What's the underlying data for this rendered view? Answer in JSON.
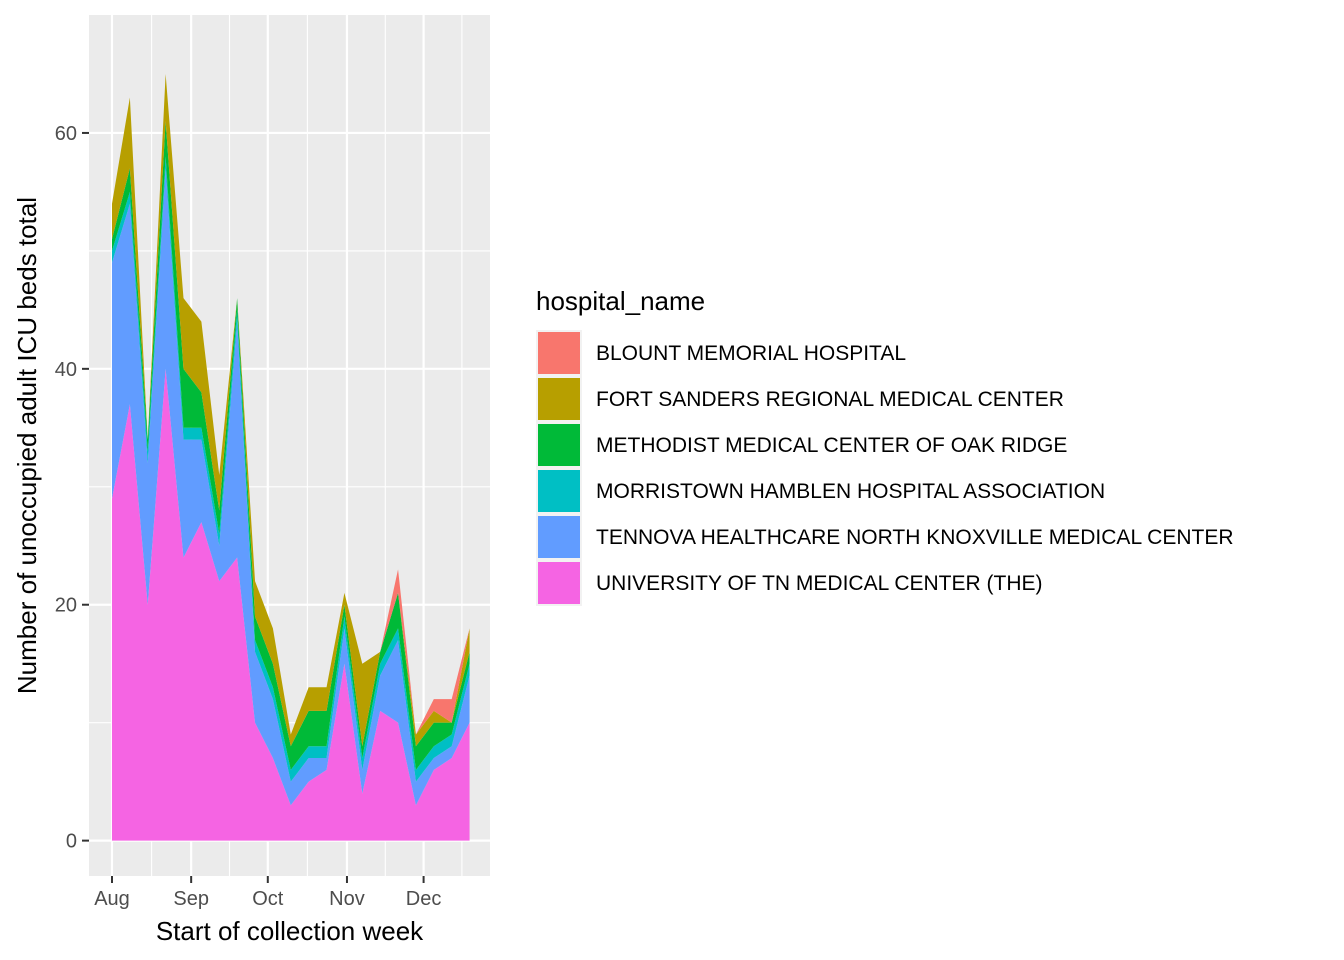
{
  "chart_data": {
    "type": "area",
    "stacked": true,
    "xlabel": "Start of collection week",
    "ylabel": "Number of unoccupied adult ICU beds total",
    "x": [
      "2020-08-01",
      "2020-08-08",
      "2020-08-15",
      "2020-08-22",
      "2020-08-29",
      "2020-09-05",
      "2020-09-12",
      "2020-09-19",
      "2020-09-26",
      "2020-10-03",
      "2020-10-10",
      "2020-10-17",
      "2020-10-24",
      "2020-10-31",
      "2020-11-07",
      "2020-11-14",
      "2020-11-21",
      "2020-11-28",
      "2020-12-05",
      "2020-12-12",
      "2020-12-19"
    ],
    "xlim": [
      "2020-07-23",
      "2020-12-27"
    ],
    "ylim": [
      -3,
      70
    ],
    "x_ticks": [
      {
        "date": "2020-08-01",
        "label": "Aug"
      },
      {
        "date": "2020-09-01",
        "label": "Sep"
      },
      {
        "date": "2020-10-01",
        "label": "Oct"
      },
      {
        "date": "2020-11-01",
        "label": "Nov"
      },
      {
        "date": "2020-12-01",
        "label": "Dec"
      }
    ],
    "y_ticks": [
      0,
      20,
      40,
      60
    ],
    "grid": true,
    "legend": {
      "title": "hospital_name",
      "placement": "right"
    },
    "series": [
      {
        "name": "BLOUNT MEMORIAL HOSPITAL",
        "color": "#F8766D",
        "values": [
          0,
          0,
          0,
          0,
          0,
          0,
          0,
          0,
          0,
          0,
          0,
          0,
          0,
          0,
          0,
          0,
          2,
          0,
          1,
          2,
          0
        ]
      },
      {
        "name": "FORT SANDERS REGIONAL MEDICAL CENTER",
        "color": "#B79F00",
        "values": [
          3,
          6,
          0,
          4,
          6,
          6,
          3,
          0,
          3,
          3,
          1,
          2,
          2,
          1,
          7,
          0,
          0,
          1,
          1,
          0,
          2
        ]
      },
      {
        "name": "METHODIST MEDICAL CENTER OF OAK RIDGE",
        "color": "#00BA38",
        "values": [
          1,
          2,
          1,
          3,
          5,
          3,
          2,
          1,
          2,
          2,
          2,
          3,
          3,
          1,
          1,
          1,
          3,
          2,
          2,
          1,
          1
        ]
      },
      {
        "name": "MORRISTOWN HAMBLEN HOSPITAL ASSOCIATION",
        "color": "#00BFC4",
        "values": [
          1,
          1,
          1,
          1,
          1,
          1,
          1,
          1,
          1,
          1,
          1,
          1,
          1,
          1,
          1,
          1,
          1,
          1,
          1,
          1,
          1
        ]
      },
      {
        "name": "TENNOVA HEALTHCARE NORTH KNOXVILLE MEDICAL CENTER",
        "color": "#619CFF",
        "values": [
          20,
          17,
          12,
          17,
          10,
          7,
          3,
          20,
          6,
          5,
          2,
          2,
          1,
          3,
          2,
          3,
          7,
          2,
          1,
          1,
          4
        ]
      },
      {
        "name": "UNIVERSITY OF TN MEDICAL CENTER (THE)",
        "color": "#F564E3",
        "values": [
          29,
          37,
          20,
          40,
          24,
          27,
          22,
          24,
          10,
          7,
          3,
          5,
          6,
          15,
          4,
          11,
          10,
          3,
          6,
          7,
          10
        ]
      }
    ]
  }
}
